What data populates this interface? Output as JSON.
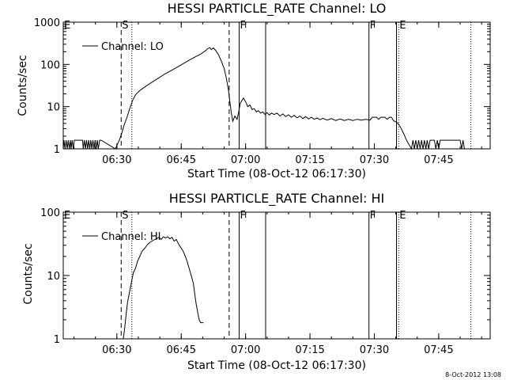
{
  "footer_stamp": "8-Oct-2012 13:08",
  "chart_data": [
    {
      "type": "line",
      "title": "HESSI PARTICLE_RATE Channel: LO",
      "xlabel": "Start Time (08-Oct-12 06:17:30)",
      "ylabel": "Counts/sec",
      "y_scale": "log",
      "xlim": [
        "06:17:30",
        "07:57:00"
      ],
      "ylim": [
        1,
        1000
      ],
      "x_ticks": [
        "06:30",
        "06:45",
        "07:00",
        "07:15",
        "07:30",
        "07:45"
      ],
      "y_ticks": [
        {
          "value": 1,
          "label": "1"
        },
        {
          "value": 10,
          "label": "10"
        },
        {
          "value": 100,
          "label": "100"
        },
        {
          "value": 1000,
          "label": "1000"
        }
      ],
      "legend": {
        "position": "top-left",
        "entries": [
          "Channel: LO"
        ]
      },
      "markers": [
        {
          "time": "06:17:30",
          "label": "E",
          "style": "solid"
        },
        {
          "time": "06:31:00",
          "label": "S",
          "style": "dashed"
        },
        {
          "time": "06:33:30",
          "label": "",
          "style": "dotted"
        },
        {
          "time": "06:56:10",
          "label": "",
          "style": "dashed"
        },
        {
          "time": "06:58:30",
          "label": "F",
          "style": "solid"
        },
        {
          "time": "07:04:40",
          "label": "",
          "style": "solid"
        },
        {
          "time": "07:28:45",
          "label": "F",
          "style": "solid"
        },
        {
          "time": "07:35:10",
          "label": "",
          "style": "solid"
        },
        {
          "time": "07:35:40",
          "label": "E",
          "style": "dotted"
        },
        {
          "time": "07:52:30",
          "label": "",
          "style": "dotted"
        }
      ],
      "series": [
        {
          "name": "Channel: LO",
          "points": [
            [
              "06:17:30",
              1
            ],
            [
              "06:17:40",
              1.6
            ],
            [
              "06:17:55",
              1
            ],
            [
              "06:18:10",
              1.6
            ],
            [
              "06:18:25",
              1
            ],
            [
              "06:18:40",
              1.6
            ],
            [
              "06:18:55",
              1
            ],
            [
              "06:19:10",
              1.6
            ],
            [
              "06:19:20",
              1
            ],
            [
              "06:19:35",
              1.6
            ],
            [
              "06:19:50",
              1
            ],
            [
              "06:20:05",
              1.6
            ],
            [
              "06:22:00",
              1.6
            ],
            [
              "06:22:10",
              1
            ],
            [
              "06:22:25",
              1.6
            ],
            [
              "06:22:40",
              1
            ],
            [
              "06:22:55",
              1.6
            ],
            [
              "06:23:10",
              1
            ],
            [
              "06:23:25",
              1.6
            ],
            [
              "06:23:40",
              1
            ],
            [
              "06:23:55",
              1.6
            ],
            [
              "06:24:10",
              1
            ],
            [
              "06:24:25",
              1.6
            ],
            [
              "06:24:40",
              1
            ],
            [
              "06:24:55",
              1.6
            ],
            [
              "06:25:10",
              1
            ],
            [
              "06:25:25",
              1.6
            ],
            [
              "06:25:40",
              1
            ],
            [
              "06:26:00",
              1.6
            ],
            [
              "06:26:20",
              1.6
            ],
            [
              "06:29:40",
              1
            ],
            [
              "06:30:10",
              1.3
            ],
            [
              "06:30:40",
              1.7
            ],
            [
              "06:31:10",
              2.4
            ],
            [
              "06:31:40",
              3.6
            ],
            [
              "06:32:20",
              5.5
            ],
            [
              "06:33:00",
              9
            ],
            [
              "06:33:40",
              14
            ],
            [
              "06:34:20",
              19
            ],
            [
              "06:35:20",
              24
            ],
            [
              "06:36:40",
              30
            ],
            [
              "06:38:00",
              37
            ],
            [
              "06:39:30",
              46
            ],
            [
              "06:41:00",
              58
            ],
            [
              "06:42:30",
              70
            ],
            [
              "06:44:00",
              85
            ],
            [
              "06:45:30",
              105
            ],
            [
              "06:47:00",
              128
            ],
            [
              "06:48:30",
              155
            ],
            [
              "06:49:30",
              175
            ],
            [
              "06:50:30",
              205
            ],
            [
              "06:51:10",
              235
            ],
            [
              "06:51:40",
              250
            ],
            [
              "06:52:00",
              225
            ],
            [
              "06:52:30",
              245
            ],
            [
              "06:53:00",
              215
            ],
            [
              "06:53:40",
              170
            ],
            [
              "06:54:20",
              120
            ],
            [
              "06:55:00",
              80
            ],
            [
              "06:55:30",
              48
            ],
            [
              "06:56:00",
              25
            ],
            [
              "06:56:20",
              13
            ],
            [
              "06:56:40",
              7
            ],
            [
              "06:57:00",
              4.5
            ],
            [
              "06:57:30",
              6
            ],
            [
              "06:58:00",
              5
            ],
            [
              "06:58:20",
              7
            ],
            [
              "06:58:45",
              12
            ],
            [
              "06:59:30",
              16
            ],
            [
              "07:00:00",
              13
            ],
            [
              "07:00:30",
              10
            ],
            [
              "07:01:00",
              11
            ],
            [
              "07:01:30",
              8.5
            ],
            [
              "07:02:00",
              9
            ],
            [
              "07:02:30",
              7.5
            ],
            [
              "07:03:00",
              8
            ],
            [
              "07:03:30",
              7
            ],
            [
              "07:04:00",
              7.5
            ],
            [
              "07:04:30",
              6.5
            ],
            [
              "07:05:00",
              7.2
            ],
            [
              "07:05:30",
              6.3
            ],
            [
              "07:06:00",
              7
            ],
            [
              "07:06:40",
              6.5
            ],
            [
              "07:07:20",
              7
            ],
            [
              "07:08:00",
              6
            ],
            [
              "07:08:40",
              6.7
            ],
            [
              "07:09:20",
              5.8
            ],
            [
              "07:10:00",
              6.4
            ],
            [
              "07:10:40",
              5.6
            ],
            [
              "07:11:20",
              6.2
            ],
            [
              "07:12:00",
              5.4
            ],
            [
              "07:12:40",
              6
            ],
            [
              "07:13:20",
              5.2
            ],
            [
              "07:14:00",
              5.8
            ],
            [
              "07:14:40",
              5.1
            ],
            [
              "07:15:20",
              5.6
            ],
            [
              "07:16:00",
              5
            ],
            [
              "07:16:40",
              5.4
            ],
            [
              "07:17:20",
              4.9
            ],
            [
              "07:18:00",
              5.3
            ],
            [
              "07:19:00",
              4.8
            ],
            [
              "07:20:00",
              5.2
            ],
            [
              "07:21:00",
              4.7
            ],
            [
              "07:22:00",
              5.1
            ],
            [
              "07:23:00",
              4.7
            ],
            [
              "07:24:00",
              5
            ],
            [
              "07:25:00",
              4.7
            ],
            [
              "07:26:00",
              5
            ],
            [
              "07:27:00",
              4.8
            ],
            [
              "07:28:00",
              5
            ],
            [
              "07:29:00",
              4.8
            ],
            [
              "07:29:30",
              5.6
            ],
            [
              "07:30:30",
              5.6
            ],
            [
              "07:31:00",
              5
            ],
            [
              "07:31:30",
              5.6
            ],
            [
              "07:32:30",
              5.6
            ],
            [
              "07:33:00",
              5
            ],
            [
              "07:33:30",
              5.6
            ],
            [
              "07:34:00",
              5.6
            ],
            [
              "07:34:30",
              4.6
            ],
            [
              "07:35:00",
              4.4
            ],
            [
              "07:35:30",
              4
            ],
            [
              "07:36:00",
              3.4
            ],
            [
              "07:36:30",
              2.7
            ],
            [
              "07:37:00",
              2.1
            ],
            [
              "07:37:30",
              1.6
            ],
            [
              "07:38:00",
              1.3
            ],
            [
              "07:38:40",
              1
            ],
            [
              "07:39:00",
              1.6
            ],
            [
              "07:39:20",
              1
            ],
            [
              "07:39:40",
              1.6
            ],
            [
              "07:40:00",
              1
            ],
            [
              "07:40:20",
              1.6
            ],
            [
              "07:40:40",
              1
            ],
            [
              "07:41:00",
              1.6
            ],
            [
              "07:41:20",
              1
            ],
            [
              "07:41:40",
              1.6
            ],
            [
              "07:42:00",
              1
            ],
            [
              "07:42:20",
              1.6
            ],
            [
              "07:42:40",
              1
            ],
            [
              "07:43:00",
              1.6
            ],
            [
              "07:44:00",
              1.6
            ],
            [
              "07:44:20",
              1
            ],
            [
              "07:44:40",
              1.6
            ],
            [
              "07:45:00",
              1
            ],
            [
              "07:45:20",
              1.6
            ],
            [
              "07:50:00",
              1.6
            ],
            [
              "07:50:20",
              1
            ],
            [
              "07:50:40",
              1.6
            ],
            [
              "07:51:00",
              1
            ]
          ]
        }
      ]
    },
    {
      "type": "line",
      "title": "HESSI PARTICLE_RATE Channel: HI",
      "xlabel": "Start Time (08-Oct-12 06:17:30)",
      "ylabel": "Counts/sec",
      "y_scale": "log",
      "xlim": [
        "06:17:30",
        "07:57:00"
      ],
      "ylim": [
        1,
        100
      ],
      "x_ticks": [
        "06:30",
        "06:45",
        "07:00",
        "07:15",
        "07:30",
        "07:45"
      ],
      "y_ticks": [
        {
          "value": 1,
          "label": "1"
        },
        {
          "value": 10,
          "label": "10"
        },
        {
          "value": 100,
          "label": "100"
        }
      ],
      "legend": {
        "position": "top-left",
        "entries": [
          "Channel: HI"
        ]
      },
      "markers": [
        {
          "time": "06:17:30",
          "label": "E",
          "style": "solid"
        },
        {
          "time": "06:31:00",
          "label": "S",
          "style": "dashed"
        },
        {
          "time": "06:33:30",
          "label": "",
          "style": "dotted"
        },
        {
          "time": "06:56:10",
          "label": "",
          "style": "dashed"
        },
        {
          "time": "06:58:30",
          "label": "F",
          "style": "solid"
        },
        {
          "time": "07:04:40",
          "label": "",
          "style": "solid"
        },
        {
          "time": "07:28:45",
          "label": "F",
          "style": "solid"
        },
        {
          "time": "07:35:10",
          "label": "",
          "style": "solid"
        },
        {
          "time": "07:35:40",
          "label": "E",
          "style": "dotted"
        },
        {
          "time": "07:52:30",
          "label": "",
          "style": "dotted"
        }
      ],
      "series": [
        {
          "name": "Channel: HI",
          "points": [
            [
              "06:31:30",
              1
            ],
            [
              "06:31:50",
              1.5
            ],
            [
              "06:32:10",
              2.5
            ],
            [
              "06:32:30",
              3.8
            ],
            [
              "06:32:50",
              5
            ],
            [
              "06:33:10",
              6.5
            ],
            [
              "06:33:30",
              8.5
            ],
            [
              "06:33:50",
              11
            ],
            [
              "06:34:20",
              13
            ],
            [
              "06:34:50",
              17
            ],
            [
              "06:35:20",
              20
            ],
            [
              "06:35:50",
              24
            ],
            [
              "06:36:30",
              27
            ],
            [
              "06:37:10",
              31
            ],
            [
              "06:37:50",
              34
            ],
            [
              "06:38:30",
              36
            ],
            [
              "06:39:10",
              38
            ],
            [
              "06:39:50",
              40
            ],
            [
              "06:40:20",
              37
            ],
            [
              "06:40:50",
              41
            ],
            [
              "06:41:20",
              39
            ],
            [
              "06:41:50",
              41
            ],
            [
              "06:42:20",
              38
            ],
            [
              "06:42:50",
              40
            ],
            [
              "06:43:20",
              35
            ],
            [
              "06:43:50",
              37
            ],
            [
              "06:44:20",
              32
            ],
            [
              "06:44:50",
              28
            ],
            [
              "06:45:20",
              25
            ],
            [
              "06:45:50",
              21
            ],
            [
              "06:46:20",
              17
            ],
            [
              "06:46:50",
              13
            ],
            [
              "06:47:20",
              10
            ],
            [
              "06:47:50",
              7.5
            ],
            [
              "06:48:10",
              5
            ],
            [
              "06:48:30",
              3.5
            ],
            [
              "06:48:50",
              2.6
            ],
            [
              "06:49:10",
              2
            ],
            [
              "06:49:30",
              1.8
            ],
            [
              "06:50:10",
              1.8
            ]
          ]
        }
      ]
    }
  ]
}
